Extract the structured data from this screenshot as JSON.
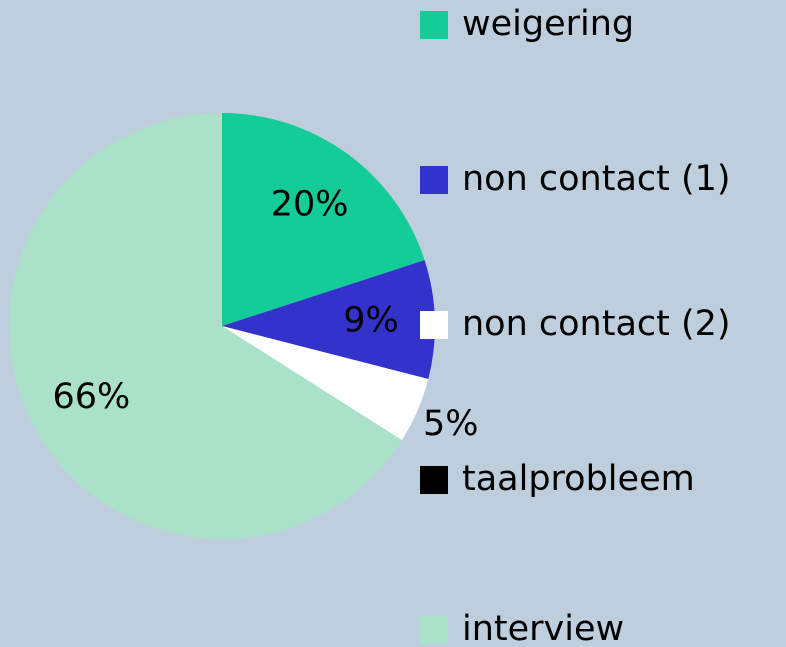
{
  "chart_data": {
    "type": "pie",
    "categories": [
      "weigering",
      "non contact (1)",
      "non contact (2)",
      "taalprobleem",
      "interview"
    ],
    "values": [
      20,
      9,
      5,
      0,
      66
    ],
    "value_labels": [
      "20%",
      "9%",
      "5%",
      null,
      "66%"
    ],
    "colors": [
      "#13cc98",
      "#3333cc",
      "#ffffff",
      "#000000",
      "#a9e2c9"
    ],
    "legend": "right"
  }
}
